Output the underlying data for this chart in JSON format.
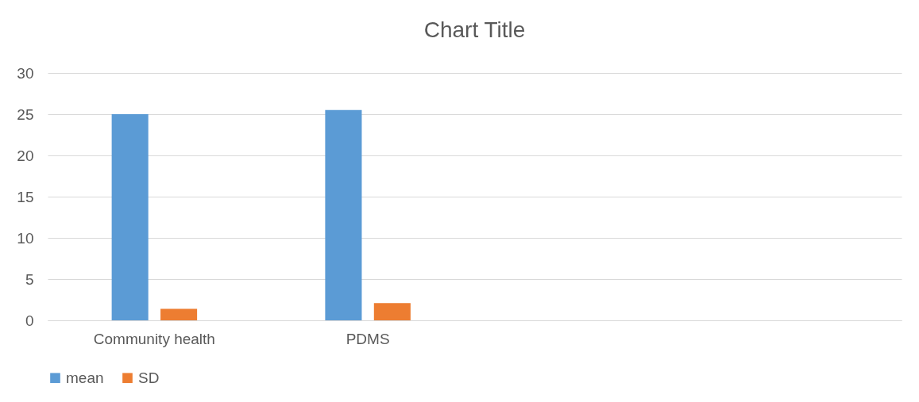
{
  "chart_data": {
    "type": "bar",
    "title": "Chart Title",
    "categories": [
      "Community health",
      "PDMS",
      null,
      null
    ],
    "series": [
      {
        "name": "mean",
        "color": "#5b9bd5",
        "values": [
          25,
          25.5,
          null,
          null
        ]
      },
      {
        "name": "SD",
        "color": "#ed7d31",
        "values": [
          1.4,
          2.1,
          null,
          null
        ]
      }
    ],
    "ylim": [
      0,
      30
    ],
    "yticks": [
      0,
      5,
      10,
      15,
      20,
      25,
      30
    ],
    "grid": "y",
    "legend": "bottom"
  }
}
